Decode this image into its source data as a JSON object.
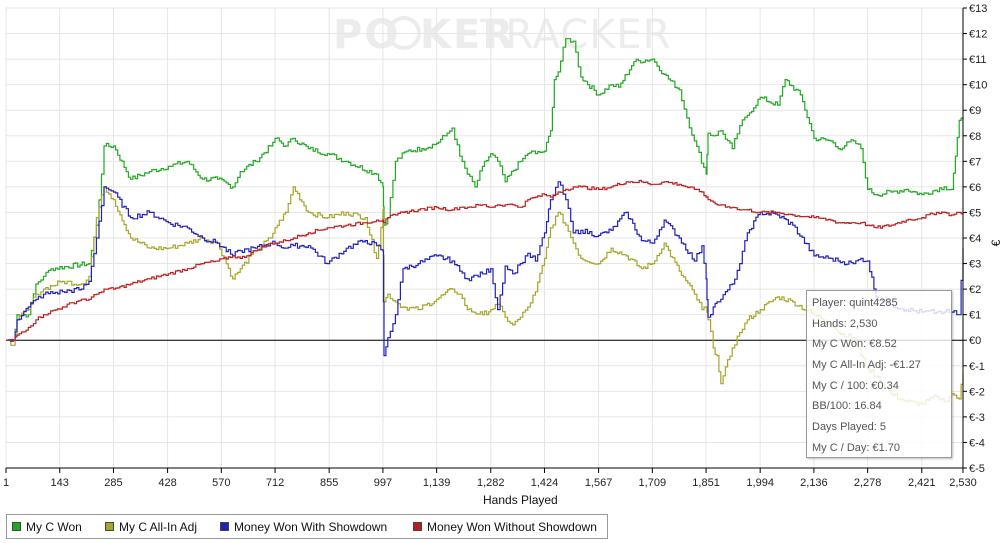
{
  "watermark": {
    "part1": "PO",
    "part2": "KER",
    "part3": "TRACKER"
  },
  "chart_data": {
    "type": "line",
    "xlabel": "Hands Played",
    "ylabel": "€",
    "xlim": [
      1,
      2530
    ],
    "ylim": [
      -5,
      13
    ],
    "x_ticks": [
      "1",
      "143",
      "285",
      "428",
      "570",
      "712",
      "855",
      "997",
      "1,139",
      "1,282",
      "1,424",
      "1,567",
      "1,709",
      "1,851",
      "1,994",
      "2,136",
      "2,278",
      "2,421",
      "2,530"
    ],
    "x_tick_values": [
      1,
      143,
      285,
      428,
      570,
      712,
      855,
      997,
      1139,
      1282,
      1424,
      1567,
      1709,
      1851,
      1994,
      2136,
      2278,
      2421,
      2530
    ],
    "y_ticks": [
      "€13",
      "€12",
      "€11",
      "€10",
      "€9",
      "€8",
      "€7",
      "€6",
      "€5",
      "€4",
      "€3",
      "€2",
      "€1",
      "€0",
      "€-1",
      "€-2",
      "€-3",
      "€-4",
      "€-5"
    ],
    "y_tick_values": [
      13,
      12,
      11,
      10,
      9,
      8,
      7,
      6,
      5,
      4,
      3,
      2,
      1,
      0,
      -1,
      -2,
      -3,
      -4,
      -5
    ],
    "legend_position": "bottom",
    "grid": true,
    "series": [
      {
        "name": "My C Won",
        "color": "#22a822",
        "x": [
          1,
          20,
          30,
          60,
          80,
          100,
          120,
          220,
          240,
          260,
          285,
          330,
          380,
          430,
          480,
          520,
          560,
          600,
          620,
          660,
          700,
          712,
          740,
          760,
          800,
          850,
          900,
          980,
          997,
          1000,
          1010,
          1030,
          1060,
          1100,
          1139,
          1160,
          1180,
          1200,
          1220,
          1240,
          1260,
          1282,
          1300,
          1320,
          1360,
          1380,
          1390,
          1400,
          1424,
          1440,
          1450,
          1460,
          1480,
          1500,
          1520,
          1567,
          1600,
          1620,
          1660,
          1709,
          1740,
          1780,
          1800,
          1820,
          1851,
          1856,
          1870,
          1890,
          1920,
          1940,
          1960,
          1994,
          2040,
          2060,
          2100,
          2136,
          2180,
          2200,
          2240,
          2260,
          2278,
          2300,
          2340,
          2380,
          2421,
          2480,
          2500,
          2510,
          2520,
          2530
        ],
        "y": [
          0,
          0,
          1,
          1,
          2.2,
          2.5,
          2.8,
          3.0,
          4.5,
          7.6,
          7.6,
          6.3,
          6.6,
          6.8,
          7.0,
          6.3,
          6.3,
          6.0,
          6.6,
          7.0,
          7.6,
          7.9,
          7.6,
          7.9,
          7.5,
          7.3,
          7.0,
          6.5,
          6.0,
          4.5,
          4.8,
          7.0,
          7.4,
          7.5,
          7.7,
          8.0,
          8.3,
          7.2,
          6.5,
          6.0,
          6.8,
          7.3,
          7.0,
          6.2,
          7.0,
          7.3,
          7.4,
          7.3,
          7.4,
          8.2,
          10.2,
          10.5,
          11.8,
          11.7,
          10.3,
          9.6,
          10.0,
          9.9,
          10.9,
          11.0,
          10.4,
          9.8,
          8.7,
          7.8,
          6.5,
          8.1,
          8.0,
          8.2,
          7.5,
          8.4,
          8.8,
          9.5,
          9.2,
          10.2,
          9.6,
          7.9,
          7.8,
          7.5,
          7.8,
          7.5,
          5.9,
          5.7,
          5.8,
          5.9,
          5.7,
          6.0,
          5.9,
          7.2,
          8.6,
          8.6
        ]
      },
      {
        "name": "My C All-In Adj",
        "color": "#a6a628",
        "x": [
          1,
          20,
          30,
          60,
          80,
          100,
          150,
          200,
          220,
          240,
          260,
          285,
          330,
          380,
          430,
          480,
          520,
          560,
          600,
          620,
          660,
          700,
          712,
          740,
          760,
          800,
          850,
          900,
          950,
          980,
          997,
          1000,
          1010,
          1030,
          1050,
          1090,
          1139,
          1180,
          1200,
          1220,
          1260,
          1282,
          1300,
          1320,
          1340,
          1360,
          1380,
          1400,
          1424,
          1440,
          1460,
          1480,
          1500,
          1520,
          1567,
          1600,
          1640,
          1680,
          1709,
          1740,
          1780,
          1820,
          1840,
          1851,
          1856,
          1870,
          1880,
          1890,
          1920,
          1940,
          1960,
          1994,
          2040,
          2080,
          2136,
          2180,
          2200,
          2240,
          2260,
          2278,
          2300,
          2340,
          2380,
          2421,
          2460,
          2480,
          2500,
          2520,
          2530
        ],
        "y": [
          0,
          -0.2,
          0.8,
          1.2,
          1.8,
          2.0,
          2.3,
          2.2,
          2.5,
          4.8,
          6.0,
          5.5,
          4.0,
          3.6,
          3.6,
          3.8,
          4.0,
          3.8,
          2.4,
          2.8,
          3.5,
          4.0,
          4.4,
          5.0,
          6.0,
          5.0,
          4.8,
          5.0,
          4.8,
          3.2,
          5.1,
          1.5,
          1.8,
          1.5,
          1.3,
          1.2,
          1.6,
          2.0,
          1.8,
          1.2,
          1.0,
          1.2,
          1.4,
          0.9,
          0.6,
          0.9,
          1.3,
          1.9,
          3.2,
          4.4,
          5.0,
          4.5,
          3.8,
          3.2,
          3.0,
          3.6,
          3.3,
          2.8,
          3.0,
          3.8,
          2.7,
          1.8,
          1.2,
          1.3,
          0.8,
          -0.3,
          -0.6,
          -1.7,
          -0.3,
          0.3,
          0.8,
          1.2,
          1.7,
          1.5,
          1.0,
          0.7,
          0.3,
          0.1,
          -0.6,
          -1.1,
          -1.4,
          -2.1,
          -2.4,
          -2.5,
          -2.2,
          -2.4,
          -2.1,
          -2.3,
          -1.3
        ]
      },
      {
        "name": "Money Won With Showdown",
        "color": "#2020bb",
        "x": [
          1,
          20,
          30,
          60,
          80,
          100,
          150,
          200,
          220,
          240,
          260,
          285,
          330,
          380,
          430,
          480,
          520,
          560,
          600,
          620,
          660,
          700,
          712,
          740,
          760,
          800,
          850,
          900,
          950,
          980,
          997,
          1000,
          1010,
          1030,
          1050,
          1090,
          1139,
          1180,
          1200,
          1220,
          1260,
          1282,
          1300,
          1320,
          1340,
          1360,
          1380,
          1400,
          1424,
          1440,
          1460,
          1480,
          1500,
          1520,
          1567,
          1600,
          1640,
          1680,
          1709,
          1740,
          1780,
          1820,
          1840,
          1851,
          1856,
          1870,
          1880,
          1890,
          1920,
          1940,
          1960,
          1994,
          2040,
          2080,
          2136,
          2180,
          2200,
          2240,
          2260,
          2278,
          2300,
          2340,
          2380,
          2421,
          2460,
          2480,
          2500,
          2520,
          2530
        ],
        "y": [
          0,
          0,
          0.8,
          1.3,
          1.6,
          1.8,
          1.9,
          2.0,
          2.3,
          4.0,
          6.0,
          5.8,
          4.8,
          5.0,
          4.6,
          4.4,
          4.0,
          3.8,
          3.3,
          3.5,
          3.6,
          3.8,
          3.8,
          3.6,
          3.7,
          3.7,
          3.0,
          3.6,
          3.9,
          3.7,
          3.5,
          -0.6,
          0.1,
          1.0,
          2.8,
          3.0,
          3.3,
          3.1,
          2.7,
          2.4,
          2.6,
          2.8,
          1.2,
          2.9,
          2.6,
          3.0,
          3.4,
          3.1,
          4.2,
          5.5,
          6.2,
          5.5,
          4.2,
          4.3,
          4.1,
          4.3,
          5.0,
          3.9,
          3.8,
          4.7,
          4.0,
          3.1,
          3.7,
          2.4,
          0.9,
          1.3,
          1.5,
          1.6,
          2.2,
          3.0,
          4.2,
          5.0,
          4.9,
          4.5,
          3.3,
          3.2,
          3.1,
          3.0,
          3.2,
          3.1,
          1.7,
          1.4,
          1.2,
          1.1,
          1.1,
          1.1,
          1.1,
          1.0,
          3.6
        ]
      },
      {
        "name": "Money Won Without Showdown",
        "color": "#bb1e1e",
        "x": [
          1,
          20,
          30,
          60,
          80,
          100,
          150,
          200,
          220,
          240,
          260,
          285,
          330,
          380,
          430,
          480,
          520,
          560,
          600,
          620,
          660,
          700,
          712,
          740,
          760,
          800,
          850,
          900,
          950,
          980,
          997,
          1000,
          1010,
          1030,
          1050,
          1090,
          1139,
          1180,
          1200,
          1220,
          1260,
          1282,
          1300,
          1320,
          1340,
          1360,
          1380,
          1400,
          1424,
          1440,
          1460,
          1480,
          1500,
          1520,
          1567,
          1600,
          1640,
          1680,
          1709,
          1740,
          1780,
          1820,
          1840,
          1851,
          1856,
          1870,
          1880,
          1890,
          1920,
          1940,
          1960,
          1994,
          2040,
          2080,
          2136,
          2180,
          2200,
          2240,
          2260,
          2278,
          2300,
          2340,
          2380,
          2421,
          2460,
          2480,
          2500,
          2520,
          2530
        ],
        "y": [
          0,
          0,
          0.2,
          0.5,
          0.8,
          1.0,
          1.3,
          1.6,
          1.6,
          1.8,
          2.0,
          2.0,
          2.2,
          2.4,
          2.6,
          2.8,
          3.0,
          3.1,
          3.3,
          3.2,
          3.5,
          3.8,
          3.8,
          3.9,
          4.0,
          4.2,
          4.4,
          4.5,
          4.6,
          4.7,
          4.7,
          4.6,
          4.8,
          4.9,
          5.0,
          5.1,
          5.2,
          5.1,
          5.2,
          5.2,
          5.3,
          5.2,
          5.3,
          5.3,
          5.3,
          5.2,
          5.5,
          5.6,
          5.7,
          5.6,
          5.8,
          5.9,
          6.0,
          6.0,
          5.9,
          6.0,
          6.2,
          6.2,
          6.1,
          6.2,
          6.1,
          5.9,
          5.8,
          5.6,
          5.5,
          5.4,
          5.3,
          5.3,
          5.2,
          5.1,
          5.1,
          5.0,
          5.0,
          4.9,
          4.8,
          4.7,
          4.6,
          4.6,
          4.6,
          4.5,
          4.4,
          4.5,
          4.7,
          4.8,
          5.0,
          5.0,
          4.9,
          5.0,
          5.0
        ]
      }
    ],
    "tooltip": {
      "lines": [
        "Player: quint4285",
        "Hands: 2,530",
        "My C Won: €8.52",
        "My C All-In Adj: -€1.27",
        "My C / 100: €0.34",
        "BB/100: 16.84",
        "Days Played: 5",
        "My C / Day: €1.70"
      ]
    }
  }
}
